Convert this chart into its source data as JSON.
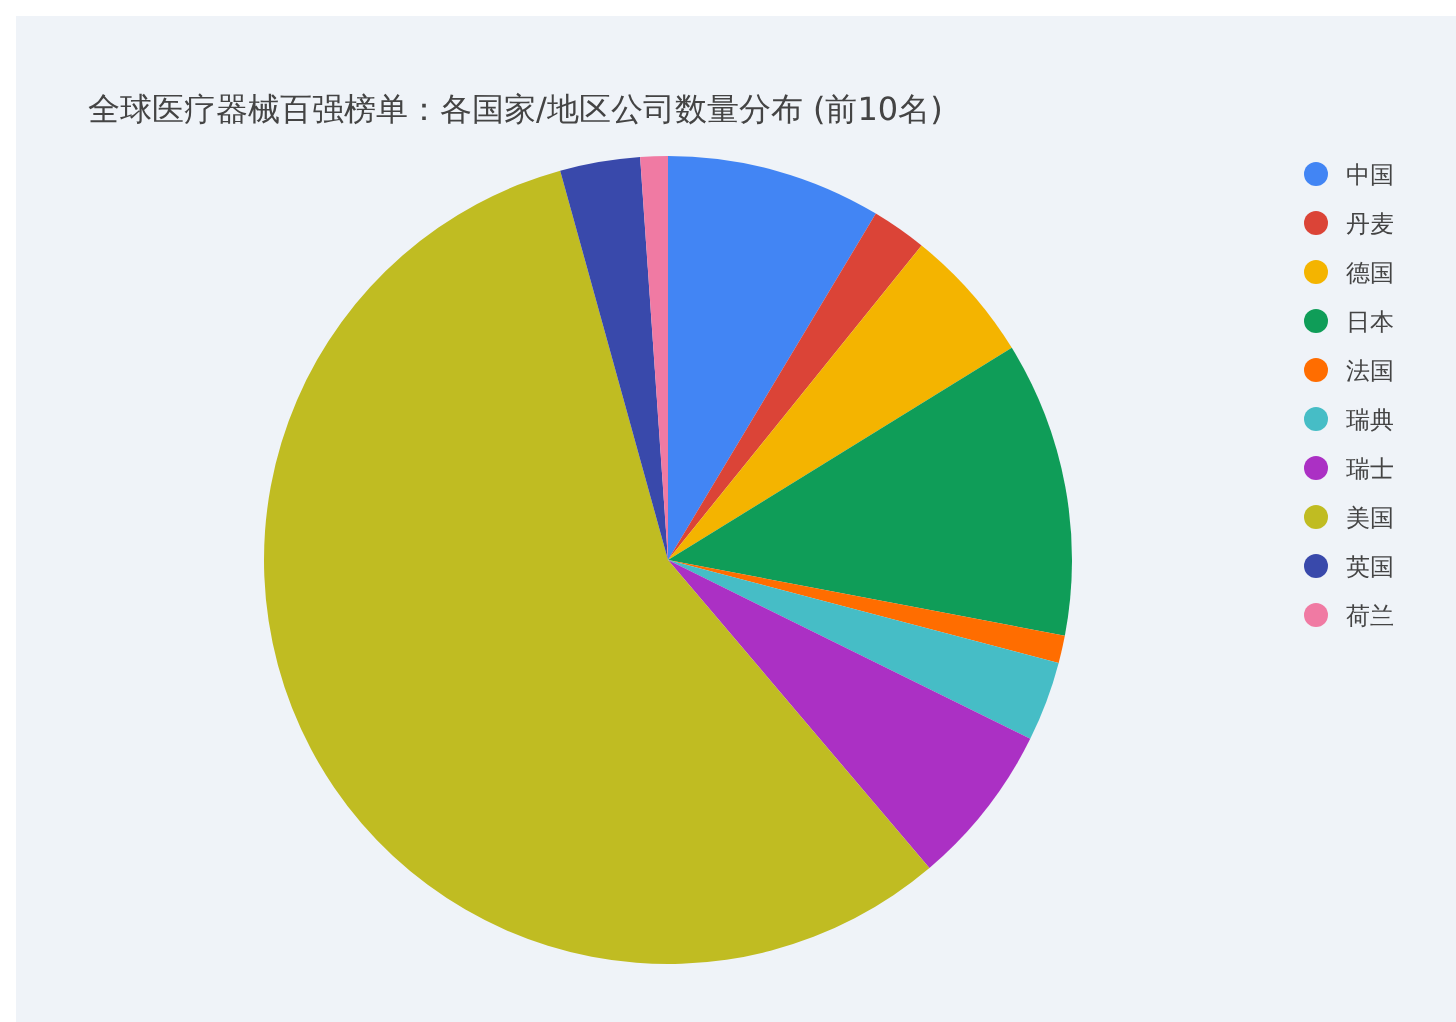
{
  "chart_data": {
    "type": "pie",
    "title": "全球医疗器械百强榜单：各国家/地区公司数量分布 (前10名)",
    "categories": [
      "中国",
      "丹麦",
      "德国",
      "日本",
      "法国",
      "瑞典",
      "瑞士",
      "美国",
      "英国",
      "荷兰"
    ],
    "values": [
      8.6,
      2.2,
      5.4,
      11.8,
      1.1,
      3.2,
      6.5,
      56.9,
      3.2,
      1.1
    ],
    "colors": [
      "#4285f4",
      "#db4437",
      "#f4b400",
      "#0f9d58",
      "#ff6d00",
      "#46bdc6",
      "#ab30c4",
      "#c0bc22",
      "#3949ab",
      "#f07aa3"
    ],
    "legend": "top right"
  }
}
